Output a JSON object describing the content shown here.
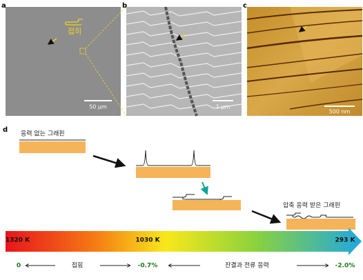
{
  "panels": [
    {
      "label": "a",
      "annotation": "접히",
      "scale_bar": "50 μm"
    },
    {
      "label": "b",
      "scale_bar": "1 μm"
    },
    {
      "label": "c",
      "scale_bar": "500 nm"
    }
  ],
  "diagram": {
    "label": "d",
    "start_state": "응력 없는 그래핀",
    "end_state": "압축 응력 받은 그래핀",
    "temperatures": [
      "1320 K",
      "1030 K",
      "293 K"
    ],
    "strains": [
      "0",
      "-0.7%",
      "-2.0%"
    ],
    "stages": [
      "접힘",
      "잔결과 전류 응력"
    ]
  }
}
